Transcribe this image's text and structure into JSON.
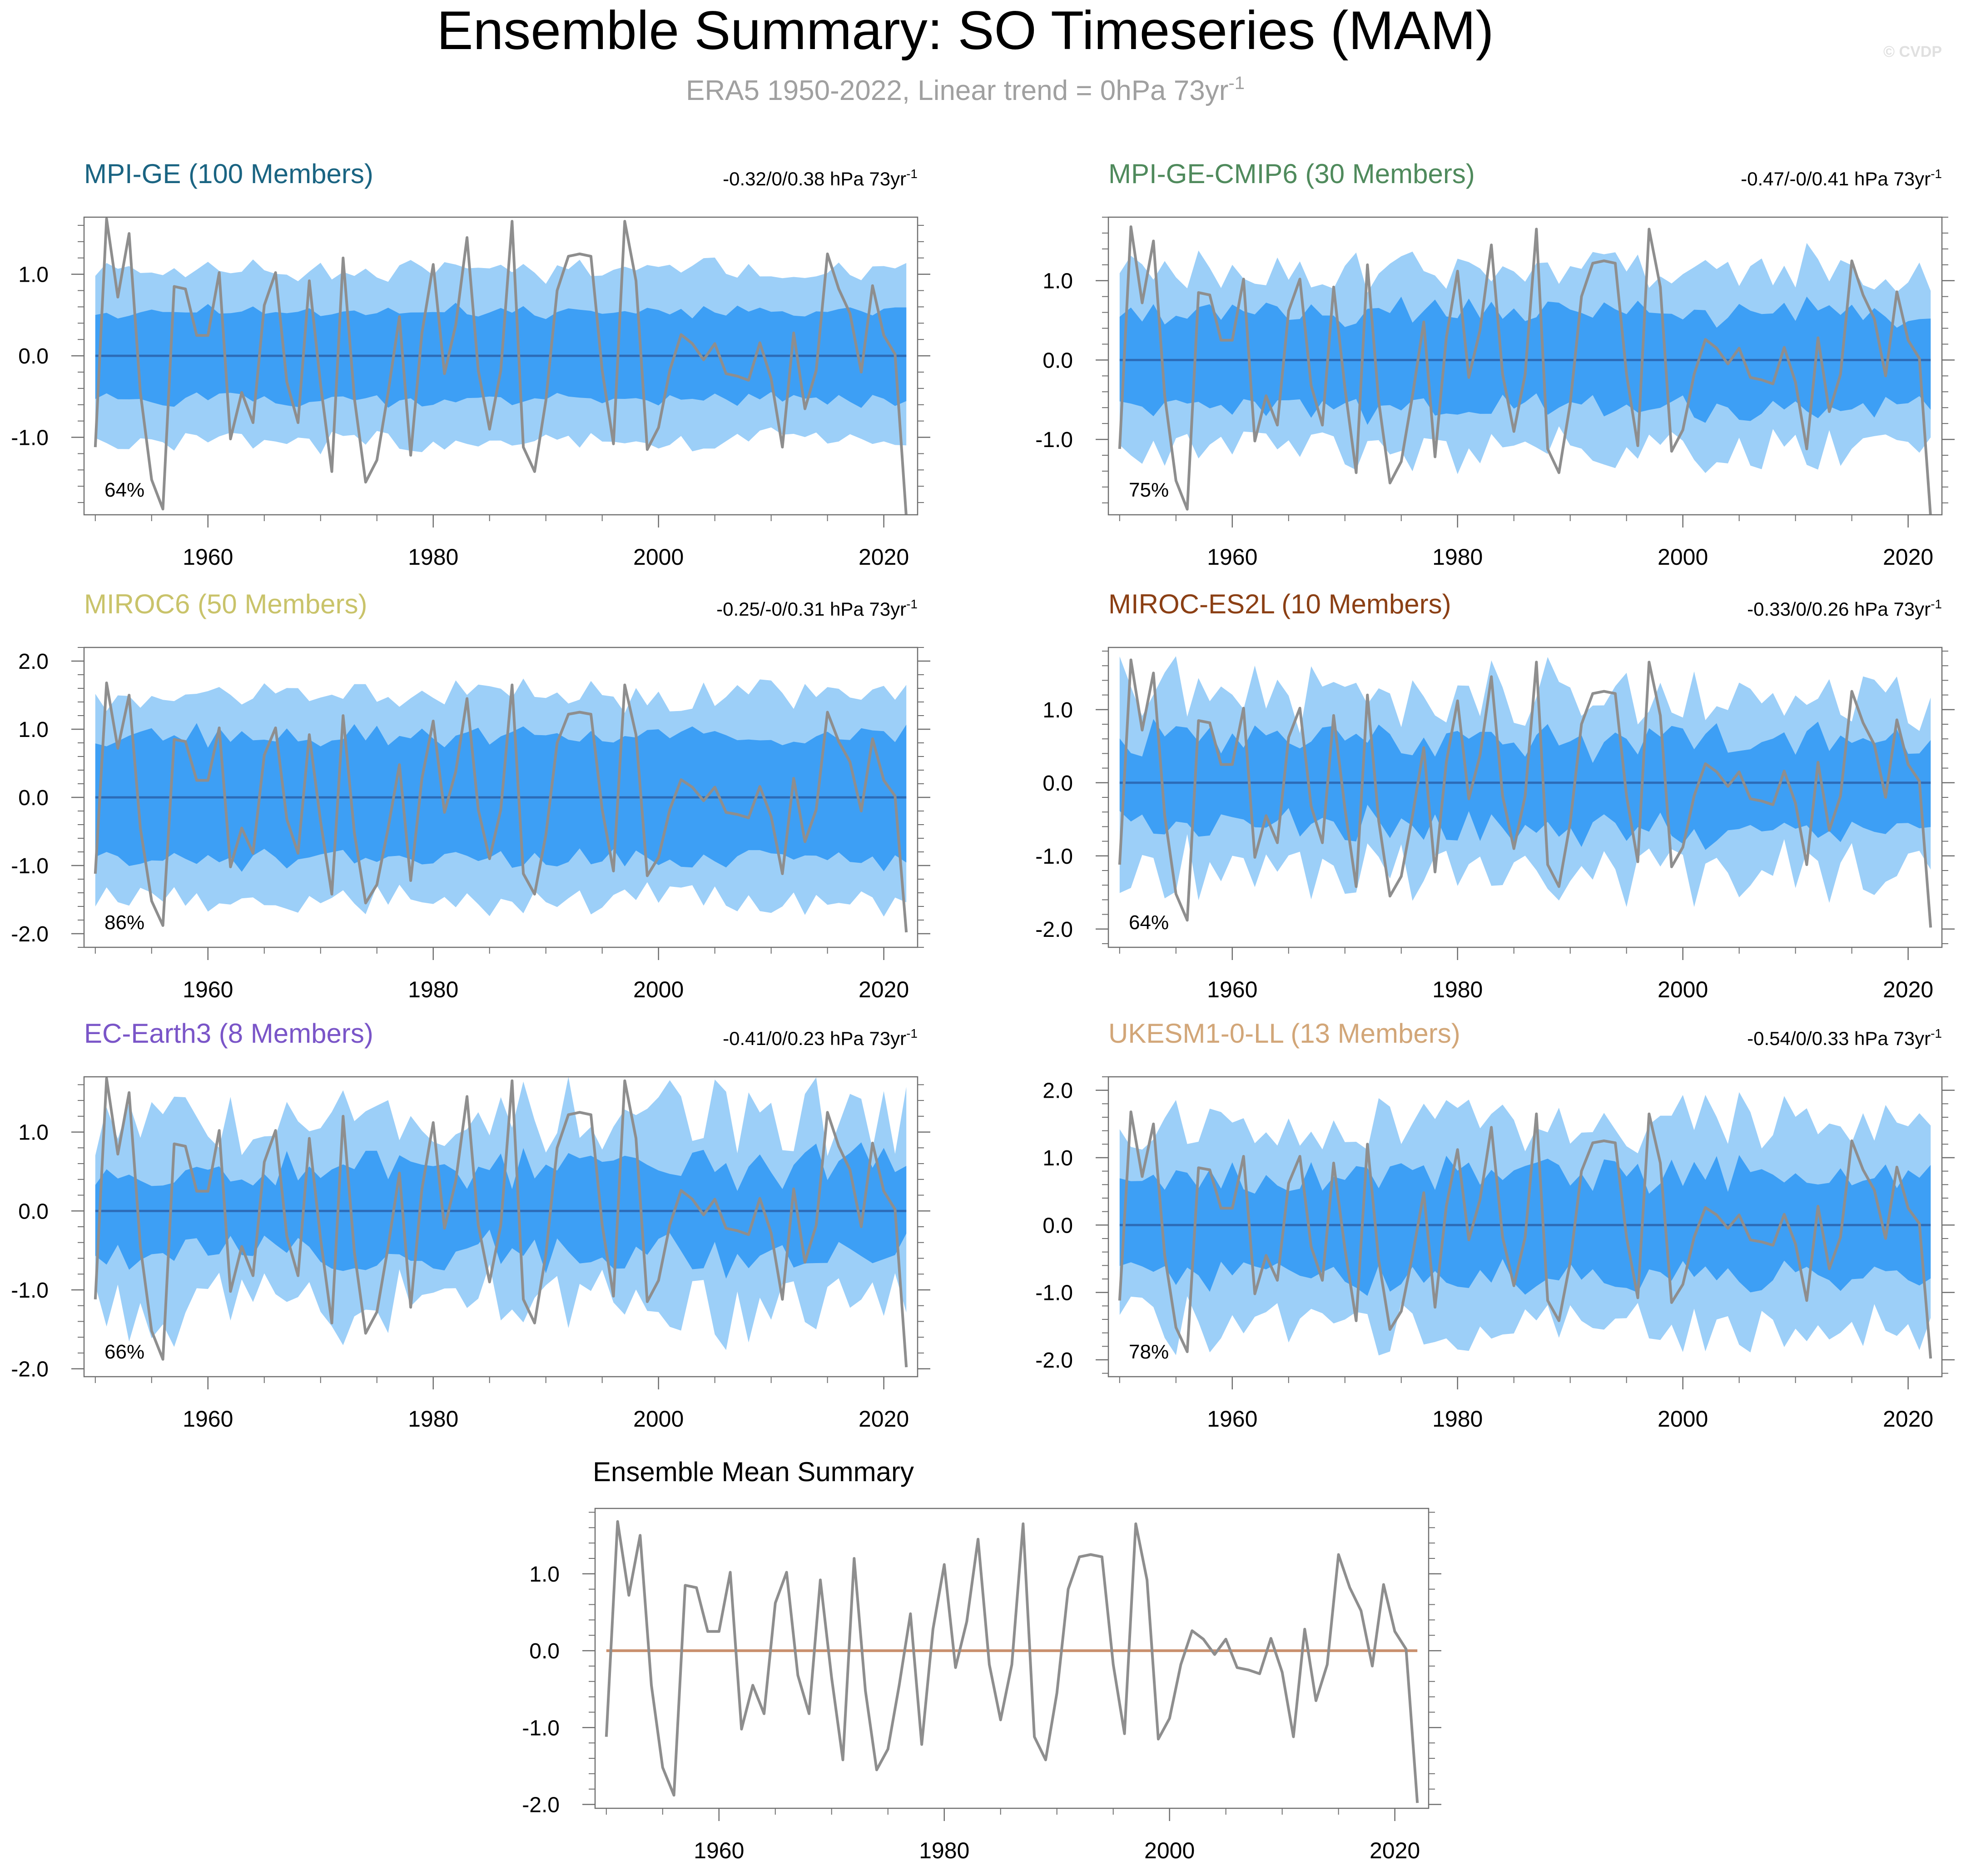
{
  "page": {
    "title": "Ensemble Summary: SO Timeseries (MAM)",
    "subtitle": "ERA5 1950-2022, Linear trend = 0hPa 73yr",
    "subtitle_exp": "-1",
    "watermark": "© CVDP"
  },
  "colors": {
    "outer_band": "#9ccff8",
    "inner_band": "#3d9ff5",
    "ensemble_mean": "#2c6cb8",
    "observed": "#8e8e8e",
    "mean_summary_zero": "#c9906e",
    "axis": "#6f6f6f"
  },
  "chart_data": [
    {
      "type": "area",
      "title": "MPI-GE (100 Members)",
      "title_color": "#1a6482",
      "trend_label": "-0.32/0/0.38 hPa 73yr",
      "trend_exp": "-1",
      "percent_label": "64%",
      "xlim": [
        1949,
        2023
      ],
      "ylim": [
        -1.95,
        1.7
      ],
      "yticks": [
        -1.0,
        0.0,
        1.0
      ],
      "ytick_labels": [
        "-1.0",
        "0.0",
        "1.0"
      ],
      "xticks": [
        1960,
        1980,
        2000,
        2020
      ],
      "inner_half_width": 0.55,
      "outer_half_width": 1.05,
      "variability": 0.12,
      "seed": 11
    },
    {
      "type": "area",
      "title": "MPI-GE-CMIP6 (30 Members)",
      "title_color": "#4f8a5c",
      "trend_label": "-0.47/-0/0.41 hPa 73yr",
      "trend_exp": "-1",
      "percent_label": "75%",
      "xlim": [
        1949,
        2023
      ],
      "ylim": [
        -1.95,
        1.8
      ],
      "yticks": [
        -1.0,
        0.0,
        1.0
      ],
      "ytick_labels": [
        "-1.0",
        "0.0",
        "1.0"
      ],
      "xticks": [
        1960,
        1980,
        2000,
        2020
      ],
      "inner_half_width": 0.6,
      "outer_half_width": 1.15,
      "variability": 0.22,
      "seed": 23
    },
    {
      "type": "area",
      "title": "MIROC6 (50 Members)",
      "title_color": "#c9c36a",
      "trend_label": "-0.25/-0/0.31 hPa 73yr",
      "trend_exp": "-1",
      "percent_label": "86%",
      "xlim": [
        1949,
        2023
      ],
      "ylim": [
        -2.2,
        2.2
      ],
      "yticks": [
        -2.0,
        -1.0,
        0.0,
        1.0,
        2.0
      ],
      "ytick_labels": [
        "-2.0",
        "-1.0",
        "0.0",
        "1.0",
        "2.0"
      ],
      "xticks": [
        1960,
        1980,
        2000,
        2020
      ],
      "inner_half_width": 0.9,
      "outer_half_width": 1.5,
      "variability": 0.15,
      "seed": 37
    },
    {
      "type": "area",
      "title": "MIROC-ES2L (10 Members)",
      "title_color": "#8b3f14",
      "trend_label": "-0.33/0/0.26 hPa 73yr",
      "trend_exp": "-1",
      "percent_label": "64%",
      "xlim": [
        1949,
        2023
      ],
      "ylim": [
        -2.25,
        1.85
      ],
      "yticks": [
        -2.0,
        -1.0,
        0.0,
        1.0
      ],
      "ytick_labels": [
        "-2.0",
        "-1.0",
        "0.0",
        "1.0"
      ],
      "xticks": [
        1960,
        1980,
        2000,
        2020
      ],
      "inner_half_width": 0.6,
      "outer_half_width": 1.2,
      "variability": 0.35,
      "seed": 41
    },
    {
      "type": "area",
      "title": "EC-Earth3 (8 Members)",
      "title_color": "#7a55c8",
      "trend_label": "-0.41/0/0.23 hPa 73yr",
      "trend_exp": "-1",
      "percent_label": "66%",
      "xlim": [
        1949,
        2023
      ],
      "ylim": [
        -2.1,
        1.7
      ],
      "yticks": [
        -2.0,
        -1.0,
        0.0,
        1.0
      ],
      "ytick_labels": [
        "-2.0",
        "-1.0",
        "0.0",
        "1.0"
      ],
      "xticks": [
        1960,
        1980,
        2000,
        2020
      ],
      "inner_half_width": 0.55,
      "outer_half_width": 1.2,
      "variability": 0.38,
      "seed": 53
    },
    {
      "type": "area",
      "title": "UKESM1-0-LL (13 Members)",
      "title_color": "#d2a678",
      "trend_label": "-0.54/0/0.33 hPa 73yr",
      "trend_exp": "-1",
      "percent_label": "78%",
      "xlim": [
        1949,
        2023
      ],
      "ylim": [
        -2.25,
        2.2
      ],
      "yticks": [
        -2.0,
        -1.0,
        0.0,
        1.0,
        2.0
      ],
      "ytick_labels": [
        "-2.0",
        "-1.0",
        "0.0",
        "1.0",
        "2.0"
      ],
      "xticks": [
        1960,
        1980,
        2000,
        2020
      ],
      "inner_half_width": 0.75,
      "outer_half_width": 1.5,
      "variability": 0.28,
      "seed": 67
    },
    {
      "type": "line",
      "title": "Ensemble Mean Summary",
      "title_color": "#000000",
      "xlim": [
        1949,
        2023
      ],
      "ylim": [
        -2.05,
        1.85
      ],
      "yticks": [
        -2.0,
        -1.0,
        0.0,
        1.0
      ],
      "ytick_labels": [
        "-2.0",
        "-1.0",
        "0.0",
        "1.0"
      ],
      "xticks": [
        1960,
        1980,
        2000,
        2020
      ]
    }
  ],
  "observed_series": {
    "name": "ERA5",
    "years_start": 1950,
    "values": [
      -1.12,
      1.68,
      0.72,
      1.5,
      -0.45,
      -1.52,
      -1.88,
      0.85,
      0.82,
      0.25,
      0.25,
      1.02,
      -1.02,
      -0.45,
      -0.82,
      0.62,
      1.02,
      -0.32,
      -0.82,
      0.92,
      -0.35,
      -1.42,
      1.2,
      -0.52,
      -1.55,
      -1.28,
      -0.45,
      0.48,
      -1.22,
      0.28,
      1.12,
      -0.22,
      0.38,
      1.45,
      -0.18,
      -0.9,
      -0.18,
      1.65,
      -1.12,
      -1.42,
      -0.55,
      0.8,
      1.22,
      1.25,
      1.22,
      -0.18,
      -1.08,
      1.65,
      0.92,
      -1.15,
      -0.88,
      -0.18,
      0.26,
      0.15,
      -0.05,
      0.15,
      -0.22,
      -0.25,
      -0.3,
      0.16,
      -0.28,
      -1.12,
      0.28,
      -0.65,
      -0.18,
      1.25,
      0.82,
      0.52,
      -0.2,
      0.86,
      0.25,
      0.02,
      -1.98
    ]
  }
}
